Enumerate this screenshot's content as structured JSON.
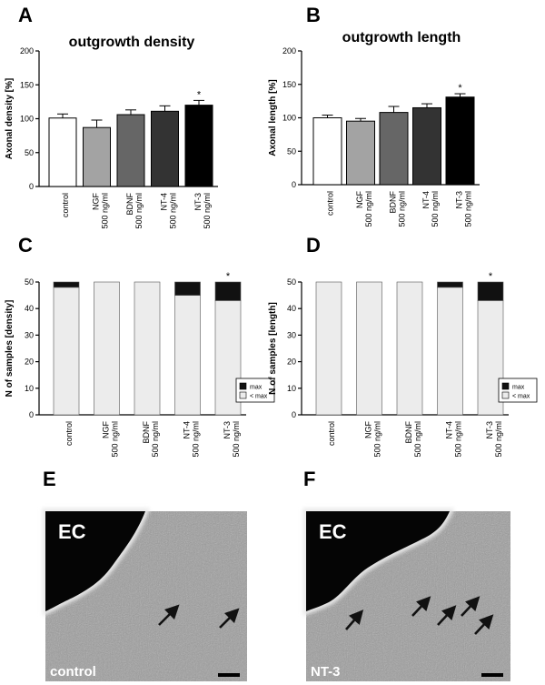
{
  "colors": {
    "control": "#ffffff",
    "NGF": "#a3a3a3",
    "BDNF": "#666666",
    "NT-4": "#333333",
    "NT-3": "#000000",
    "stack_max": "#111111",
    "stack_lt_max": "#ececec"
  },
  "chart_data": [
    {
      "panel": "A",
      "type": "bar",
      "title": "outgrowth density",
      "ylabel": "Axonal density [%]",
      "ylim": [
        0,
        200
      ],
      "yticks": [
        0,
        50,
        100,
        150,
        200
      ],
      "categories": [
        "control",
        "NGF 500 ng/ml",
        "BDNF 500 ng/ml",
        "NT-4 500 ng/ml",
        "NT-3 500 ng/ml"
      ],
      "values": [
        101,
        87,
        106,
        111,
        120
      ],
      "errors": [
        6,
        11,
        7,
        8,
        7
      ],
      "significant": [
        "",
        "",
        "",
        "",
        "*"
      ]
    },
    {
      "panel": "B",
      "type": "bar",
      "title": "outgrowth length",
      "ylabel": "Axonal length [%]",
      "ylim": [
        0,
        200
      ],
      "yticks": [
        0,
        50,
        100,
        150,
        200
      ],
      "categories": [
        "control",
        "NGF 500 ng/ml",
        "BDNF 500 ng/ml",
        "NT-4 500 ng/ml",
        "NT-3 500 ng/ml"
      ],
      "values": [
        100,
        95,
        108,
        115,
        131
      ],
      "errors": [
        4,
        4,
        9,
        6,
        5
      ],
      "significant": [
        "",
        "",
        "",
        "",
        "*"
      ]
    },
    {
      "panel": "C",
      "type": "bar",
      "stacked": true,
      "ylabel": "N of samples [density]",
      "ylim": [
        0,
        50
      ],
      "yticks": [
        0,
        10,
        20,
        30,
        40,
        50
      ],
      "categories": [
        "control",
        "NGF 500 ng/ml",
        "BDNF 500 ng/ml",
        "NT-4 500 ng/ml",
        "NT-3 500 ng/ml"
      ],
      "series": [
        {
          "name": "< max",
          "values": [
            48,
            50,
            50,
            45,
            43
          ]
        },
        {
          "name": "max",
          "values": [
            2,
            0,
            0,
            5,
            7
          ]
        }
      ],
      "significant": [
        "",
        "",
        "",
        "",
        "*"
      ],
      "legend": "bottom-right"
    },
    {
      "panel": "D",
      "type": "bar",
      "stacked": true,
      "ylabel": "N of samples [length]",
      "ylim": [
        0,
        50
      ],
      "yticks": [
        0,
        10,
        20,
        30,
        40,
        50
      ],
      "categories": [
        "control",
        "NGF 500 ng/ml",
        "BDNF 500 ng/ml",
        "NT-4 500 ng/ml",
        "NT-3 500 ng/ml"
      ],
      "series": [
        {
          "name": "< max",
          "values": [
            50,
            50,
            50,
            48,
            43
          ]
        },
        {
          "name": "max",
          "values": [
            0,
            0,
            0,
            2,
            7
          ]
        }
      ],
      "significant": [
        "",
        "",
        "",
        "",
        "*"
      ],
      "legend": "bottom-right"
    }
  ],
  "micrographs": [
    {
      "panel": "E",
      "region_label": "EC",
      "condition_label": "control",
      "arrows": 2
    },
    {
      "panel": "F",
      "region_label": "EC",
      "condition_label": "NT-3",
      "arrows": 5
    }
  ]
}
